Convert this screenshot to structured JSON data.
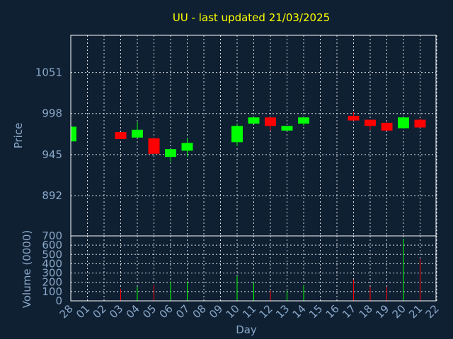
{
  "chart_data": {
    "type": "candlestick",
    "title": "UU - last updated 21/03/2025",
    "xlabel": "Day",
    "price_panel": {
      "ylabel": "Price",
      "yticks": [
        892,
        945,
        998,
        1051
      ],
      "ylim": [
        840,
        1099
      ]
    },
    "volume_panel": {
      "ylabel": "Volume (0000)",
      "yticks": [
        0,
        100,
        200,
        300,
        400,
        500,
        600,
        700
      ],
      "ylim": [
        0,
        700
      ]
    },
    "x_tick_labels": [
      "28",
      "01",
      "02",
      "03",
      "04",
      "05",
      "06",
      "07",
      "08",
      "09",
      "10",
      "11",
      "12",
      "13",
      "14",
      "15",
      "16",
      "17",
      "18",
      "19",
      "20",
      "21",
      "22"
    ],
    "candles": [
      {
        "day": "28",
        "open": 962,
        "high": 982,
        "low": 962,
        "close": 981
      },
      {
        "day": "03",
        "open": 974,
        "high": 974,
        "low": 965,
        "close": 965
      },
      {
        "day": "04",
        "open": 967,
        "high": 987,
        "low": 967,
        "close": 977
      },
      {
        "day": "05",
        "open": 966,
        "high": 966,
        "low": 946,
        "close": 946
      },
      {
        "day": "06",
        "open": 942,
        "high": 952,
        "low": 936,
        "close": 952
      },
      {
        "day": "07",
        "open": 950,
        "high": 966,
        "low": 942,
        "close": 960
      },
      {
        "day": "10",
        "open": 961,
        "high": 984,
        "low": 956,
        "close": 982
      },
      {
        "day": "11",
        "open": 985,
        "high": 993,
        "low": 985,
        "close": 993
      },
      {
        "day": "12",
        "open": 993,
        "high": 993,
        "low": 976,
        "close": 982
      },
      {
        "day": "13",
        "open": 976,
        "high": 982,
        "low": 976,
        "close": 982
      },
      {
        "day": "14",
        "open": 985,
        "high": 993,
        "low": 982,
        "close": 993
      },
      {
        "day": "17",
        "open": 995,
        "high": 1000,
        "low": 989,
        "close": 989
      },
      {
        "day": "18",
        "open": 990,
        "high": 990,
        "low": 977,
        "close": 982
      },
      {
        "day": "19",
        "open": 986,
        "high": 987,
        "low": 976,
        "close": 976
      },
      {
        "day": "20",
        "open": 979,
        "high": 993,
        "low": 979,
        "close": 993
      },
      {
        "day": "21",
        "open": 990,
        "high": 992,
        "low": 980,
        "close": 980
      }
    ],
    "volumes": [
      {
        "day": "03",
        "value": 130,
        "direction": "down"
      },
      {
        "day": "04",
        "value": 150,
        "direction": "up"
      },
      {
        "day": "05",
        "value": 170,
        "direction": "down"
      },
      {
        "day": "06",
        "value": 210,
        "direction": "up"
      },
      {
        "day": "07",
        "value": 210,
        "direction": "up"
      },
      {
        "day": "10",
        "value": 270,
        "direction": "up"
      },
      {
        "day": "11",
        "value": 200,
        "direction": "up"
      },
      {
        "day": "12",
        "value": 110,
        "direction": "down"
      },
      {
        "day": "13",
        "value": 110,
        "direction": "up"
      },
      {
        "day": "14",
        "value": 170,
        "direction": "up"
      },
      {
        "day": "17",
        "value": 230,
        "direction": "down"
      },
      {
        "day": "18",
        "value": 150,
        "direction": "down"
      },
      {
        "day": "19",
        "value": 150,
        "direction": "down"
      },
      {
        "day": "20",
        "value": 670,
        "direction": "up"
      },
      {
        "day": "21",
        "value": 450,
        "direction": "down"
      }
    ],
    "colors": {
      "background": "#0f2033",
      "up": "#00ff00",
      "down": "#ff0000",
      "title": "#ffff00",
      "text": "#8aa8c8",
      "grid": "#ffffff"
    },
    "grid": true
  }
}
